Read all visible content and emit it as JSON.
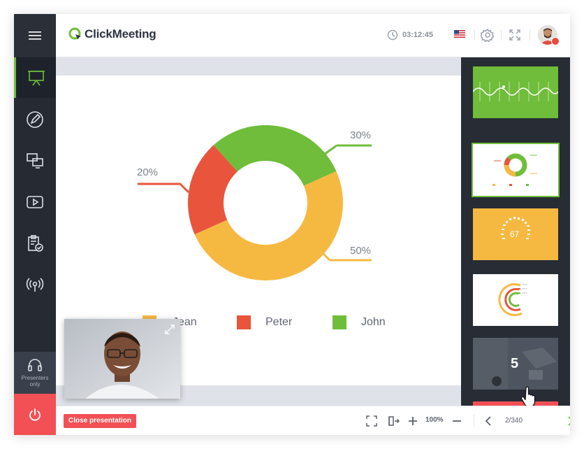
{
  "header": {
    "logo_text": "ClickMeeting",
    "timer": "03:12:45"
  },
  "sidebar": {
    "items": [
      {
        "name": "presentation"
      },
      {
        "name": "whiteboard"
      },
      {
        "name": "screen-sharing"
      },
      {
        "name": "video"
      },
      {
        "name": "tests"
      },
      {
        "name": "broadcast"
      }
    ],
    "presenters_label": "Presenters only"
  },
  "slide": {
    "chart_data": {
      "type": "pie",
      "donut": true,
      "slices": [
        {
          "label": "Jean",
          "value": 50,
          "color": "#f5b942"
        },
        {
          "label": "Peter",
          "value": 20,
          "color": "#e8553c"
        },
        {
          "label": "John",
          "value": 30,
          "color": "#6fbd3a"
        }
      ],
      "callouts": [
        "20%",
        "30%",
        "50%"
      ],
      "legend": [
        "Jean",
        "Peter",
        "John"
      ],
      "legend_position": "bottom"
    }
  },
  "thumbnails": [
    {
      "color": "#6fbd3a"
    },
    {
      "color": "#ffffff",
      "selected": true
    },
    {
      "color": "#f5b942",
      "number": "67"
    },
    {
      "color": "#ffffff"
    },
    {
      "color": "#3e434c",
      "number": "5"
    },
    {
      "color": "#f25055"
    }
  ],
  "bottombar": {
    "close_label": "Close presentation",
    "zoom": "100%",
    "page": "2/340"
  },
  "colors": {
    "accent_green": "#6fbd3a",
    "accent_red": "#f25055",
    "sidebar_bg": "#252a33"
  }
}
